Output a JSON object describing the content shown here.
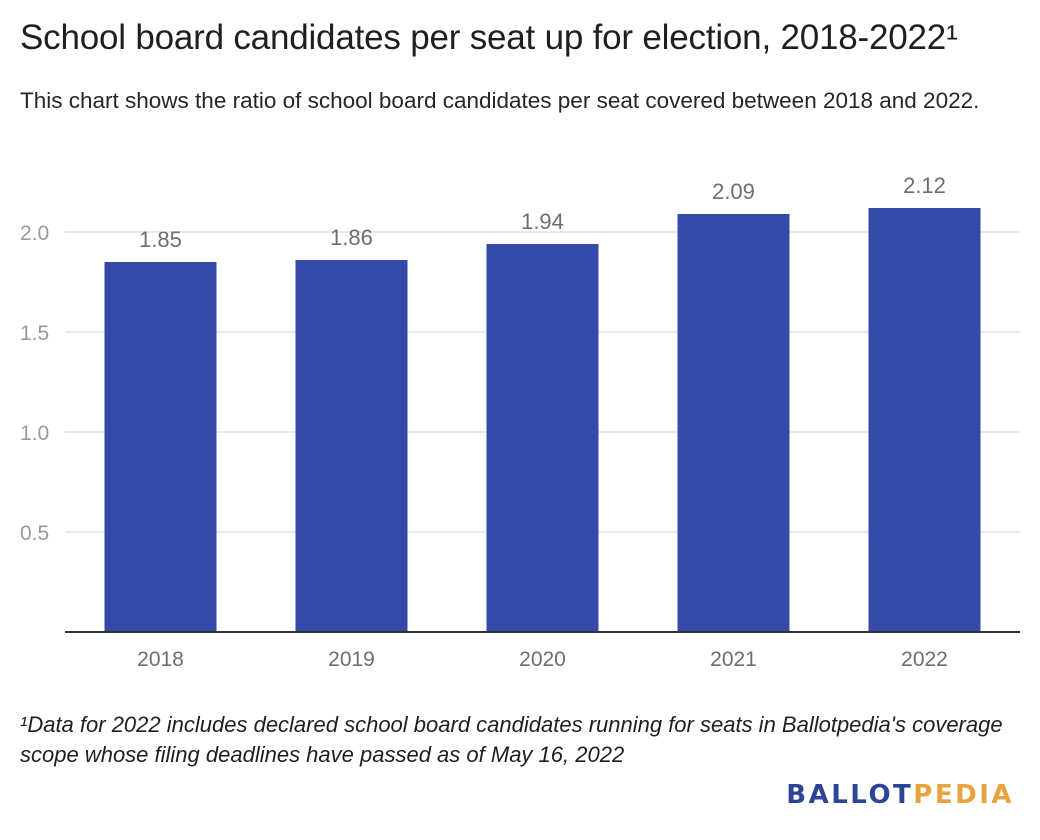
{
  "title": "School board candidates per seat up for election, 2018-2022¹",
  "subtitle": "This chart shows the ratio of school board candidates per seat covered between 2018 and 2022.",
  "footnote": "¹Data for 2022 includes declared school board candidates running for seats in Ballotpedia's coverage scope whose filing deadlines have passed as of May 16, 2022",
  "logo": {
    "part1": "BALLOT",
    "part2": "PEDIA",
    "color1": "#2b4594",
    "color2": "#e8a33d"
  },
  "chart_data": {
    "type": "bar",
    "categories": [
      "2018",
      "2019",
      "2020",
      "2021",
      "2022"
    ],
    "values": [
      1.85,
      1.86,
      1.94,
      2.09,
      2.12
    ],
    "data_labels": [
      "1.85",
      "1.86",
      "1.94",
      "2.09",
      "2.12"
    ],
    "yticks": [
      "0.5",
      "1.0",
      "1.5",
      "2.0"
    ],
    "ytick_values": [
      0.5,
      1.0,
      1.5,
      2.0
    ],
    "ylim": [
      0,
      2.2
    ],
    "grid": true,
    "bar_color": "#344aa8",
    "xlabel": "",
    "ylabel": ""
  }
}
